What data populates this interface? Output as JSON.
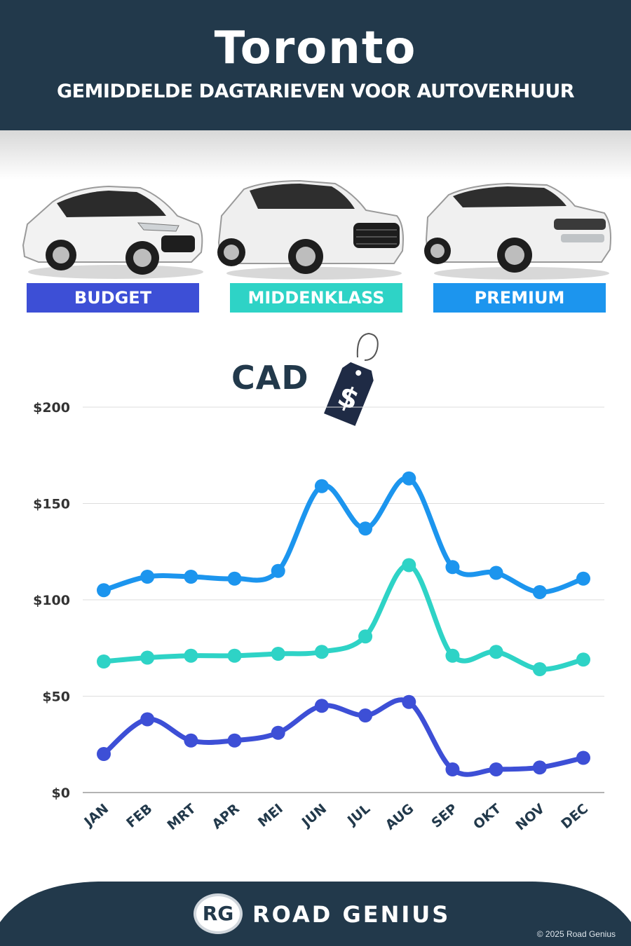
{
  "header": {
    "title": "Toronto",
    "subtitle": "GEMIDDELDE DAGTARIEVEN VOOR AUTOVERHUUR"
  },
  "categories": [
    {
      "label": "BUDGET",
      "color": "#3d4fd6"
    },
    {
      "label": "MIDDENKLASS",
      "color": "#2ed3c6"
    },
    {
      "label": "PREMIUM",
      "color": "#1c95ee"
    }
  ],
  "currency_label": "CAD",
  "tag_symbol": "$",
  "chart_data": {
    "type": "line",
    "title": "",
    "xlabel": "",
    "ylabel": "",
    "categories": [
      "JAN",
      "FEB",
      "MRT",
      "APR",
      "MEI",
      "JUN",
      "JUL",
      "AUG",
      "SEP",
      "OKT",
      "NOV",
      "DEC"
    ],
    "y_ticks": [
      "$0",
      "$50",
      "$100",
      "$150",
      "$200"
    ],
    "ylim": [
      0,
      200
    ],
    "grid": true,
    "series": [
      {
        "name": "PREMIUM",
        "color": "#1c95ee",
        "values": [
          105,
          112,
          112,
          111,
          115,
          159,
          137,
          163,
          117,
          114,
          104,
          111
        ]
      },
      {
        "name": "MIDDENKLASS",
        "color": "#2ed3c6",
        "values": [
          68,
          70,
          71,
          71,
          72,
          73,
          81,
          118,
          71,
          73,
          64,
          69
        ]
      },
      {
        "name": "BUDGET",
        "color": "#3d4fd6",
        "values": [
          20,
          38,
          27,
          27,
          31,
          45,
          40,
          47,
          12,
          12,
          13,
          18
        ]
      }
    ]
  },
  "footer": {
    "logo_text": "RG",
    "brand": "ROAD GENIUS",
    "copyright": "© 2025 Road Genius"
  }
}
